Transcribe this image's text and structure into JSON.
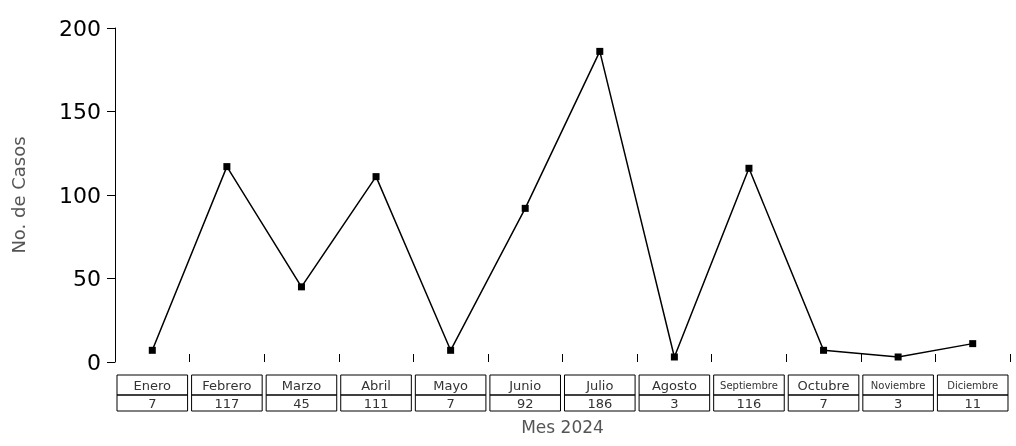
{
  "chart_data": {
    "type": "line",
    "ylabel": "No. de Casos",
    "xlabel": "Mes 2024",
    "categories": [
      "Enero",
      "Febrero",
      "Marzo",
      "Abril",
      "Mayo",
      "Junio",
      "Julio",
      "Agosto",
      "Septiembre",
      "Octubre",
      "Noviembre",
      "Diciembre"
    ],
    "series": [
      {
        "color": "#000000",
        "values": [
          7,
          117,
          45,
          111,
          7,
          92,
          186,
          3,
          116,
          7,
          3,
          11
        ]
      }
    ],
    "ylim": [
      0,
      200
    ],
    "yticks": [
      0,
      50,
      100,
      150,
      200
    ],
    "grid": false,
    "marker": "square",
    "line_style": "solid",
    "data_labels": true
  }
}
